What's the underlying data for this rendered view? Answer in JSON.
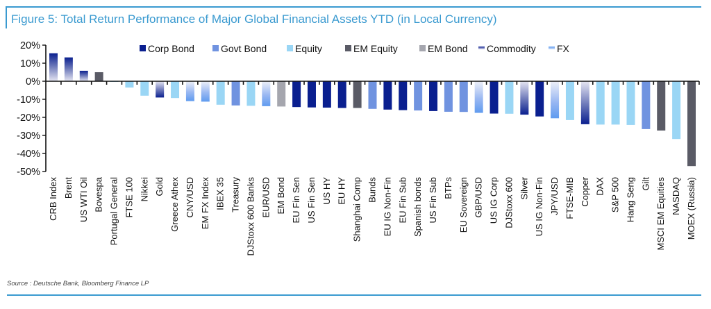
{
  "chart_data": {
    "type": "bar",
    "title": "Figure 5: Total Return Performance of Major Global Financial Assets YTD (in Local Currency)",
    "xlabel": "",
    "ylabel": "",
    "ylim": [
      -50,
      20
    ],
    "yticks": [
      20,
      10,
      0,
      -10,
      -20,
      -30,
      -40,
      -50
    ],
    "ytick_labels": [
      "20%",
      "10%",
      "0%",
      "-10%",
      "-20%",
      "-30%",
      "-40%",
      "-50%"
    ],
    "grid": false,
    "legend_position": "top",
    "legend": [
      {
        "name": "Corp Bond",
        "color": "#0a1f8f",
        "style": "solid"
      },
      {
        "name": "Govt Bond",
        "color": "#7093e0",
        "style": "solid"
      },
      {
        "name": "Equity",
        "color": "#9ad6f5",
        "style": "solid"
      },
      {
        "name": "EM Equity",
        "color": "#5a5b66",
        "style": "solid"
      },
      {
        "name": "EM Bond",
        "color": "#a5a6ae",
        "style": "solid"
      },
      {
        "name": "Commodity",
        "color": "#0a1f8f",
        "style": "gradient"
      },
      {
        "name": "FX",
        "color": "#6aa3ee",
        "style": "gradient"
      }
    ],
    "bars": [
      {
        "category": "CRB Index",
        "value": 15.5,
        "type": "Commodity"
      },
      {
        "category": "Brent",
        "value": 13.2,
        "type": "Commodity"
      },
      {
        "category": "US WTI Oil",
        "value": 5.8,
        "type": "Commodity"
      },
      {
        "category": "Bovespa",
        "value": 5.0,
        "type": "EM Equity"
      },
      {
        "category": "Portugal General",
        "value": -0.3,
        "type": "Equity"
      },
      {
        "category": "FTSE 100",
        "value": -3.5,
        "type": "Equity"
      },
      {
        "category": "Nikkei",
        "value": -8.0,
        "type": "Equity"
      },
      {
        "category": "Gold",
        "value": -9.0,
        "type": "Commodity"
      },
      {
        "category": "Greece Athex",
        "value": -9.3,
        "type": "Equity"
      },
      {
        "category": "CNY/USD",
        "value": -11.0,
        "type": "FX"
      },
      {
        "category": "EM FX Index",
        "value": -11.3,
        "type": "FX"
      },
      {
        "category": "IBEX 35",
        "value": -13.0,
        "type": "Equity"
      },
      {
        "category": "Treasury",
        "value": -13.4,
        "type": "Govt Bond"
      },
      {
        "category": "DJStoxx 600 Banks",
        "value": -13.6,
        "type": "Equity"
      },
      {
        "category": "EUR/USD",
        "value": -13.8,
        "type": "FX"
      },
      {
        "category": "EM Bond",
        "value": -14.0,
        "type": "EM Bond"
      },
      {
        "category": "EU Fin Sen",
        "value": -14.3,
        "type": "Corp Bond"
      },
      {
        "category": "US Fin Sen",
        "value": -14.5,
        "type": "Corp Bond"
      },
      {
        "category": "US HY",
        "value": -14.6,
        "type": "Corp Bond"
      },
      {
        "category": "EU HY",
        "value": -14.8,
        "type": "Corp Bond"
      },
      {
        "category": "Shanghai Comp",
        "value": -14.8,
        "type": "EM Equity"
      },
      {
        "category": "Bunds",
        "value": -15.3,
        "type": "Govt Bond"
      },
      {
        "category": "EU IG Non-Fin",
        "value": -15.7,
        "type": "Corp Bond"
      },
      {
        "category": "EU Fin Sub",
        "value": -16.0,
        "type": "Corp Bond"
      },
      {
        "category": "Spanish bonds",
        "value": -16.2,
        "type": "Govt Bond"
      },
      {
        "category": "US Fin Sub",
        "value": -16.5,
        "type": "Corp Bond"
      },
      {
        "category": "BTPs",
        "value": -16.9,
        "type": "Govt Bond"
      },
      {
        "category": "EU Sovereign",
        "value": -17.0,
        "type": "Govt Bond"
      },
      {
        "category": "GBP/USD",
        "value": -17.5,
        "type": "FX"
      },
      {
        "category": "US IG Corp",
        "value": -17.9,
        "type": "Corp Bond"
      },
      {
        "category": "DJStoxx 600",
        "value": -18.0,
        "type": "Equity"
      },
      {
        "category": "Silver",
        "value": -18.5,
        "type": "Commodity"
      },
      {
        "category": "US IG Non-Fin",
        "value": -19.5,
        "type": "Corp Bond"
      },
      {
        "category": "JPY/USD",
        "value": -20.5,
        "type": "FX"
      },
      {
        "category": "FTSE-MIB",
        "value": -21.5,
        "type": "Equity"
      },
      {
        "category": "Copper",
        "value": -23.8,
        "type": "Commodity"
      },
      {
        "category": "DAX",
        "value": -24.0,
        "type": "Equity"
      },
      {
        "category": "S&P 500",
        "value": -24.0,
        "type": "Equity"
      },
      {
        "category": "Hang Seng",
        "value": -24.2,
        "type": "Equity"
      },
      {
        "category": "Gilt",
        "value": -26.5,
        "type": "Govt Bond"
      },
      {
        "category": "MSCI EM Equities",
        "value": -27.3,
        "type": "EM Equity"
      },
      {
        "category": "NASDAQ",
        "value": -32.0,
        "type": "Equity"
      },
      {
        "category": "MOEX (Russia)",
        "value": -47.0,
        "type": "EM Equity"
      }
    ],
    "source": "Source : Deutsche Bank, Bloomberg Finance LP"
  }
}
